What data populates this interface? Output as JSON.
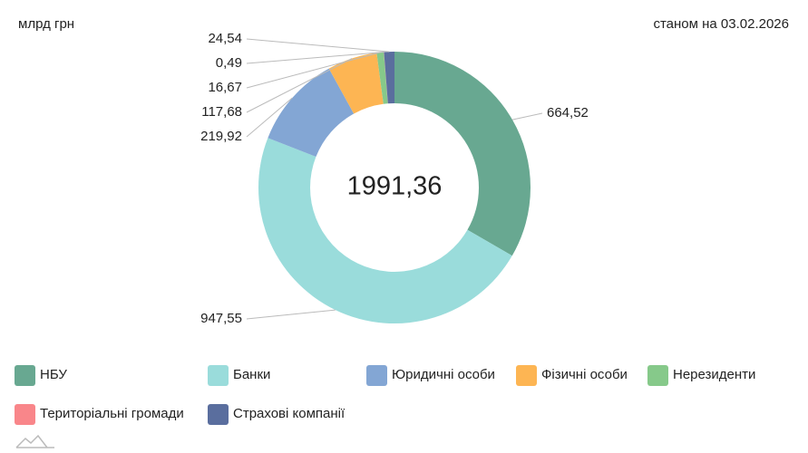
{
  "chart_data": {
    "type": "donut",
    "unit_label": "млрд грн",
    "date_label": "станом на 03.02.2026",
    "total": {
      "value": 1991.36,
      "label": "1991,36"
    },
    "categories": [
      "НБУ",
      "Банки",
      "Юридичні особи",
      "Фізичні особи",
      "Нерезиденти",
      "Територіальні громади",
      "Страхові компанії"
    ],
    "values": [
      664.52,
      947.55,
      219.92,
      117.68,
      16.67,
      0.49,
      24.54
    ],
    "value_labels": [
      "664,52",
      "947,55",
      "219,92",
      "117,68",
      "16,67",
      "0,49",
      "24,54"
    ],
    "colors": [
      "#68a891",
      "#9adcdb",
      "#83a6d4",
      "#fdb553",
      "#86c98a",
      "#f9868a",
      "#5a6e9e"
    ]
  }
}
